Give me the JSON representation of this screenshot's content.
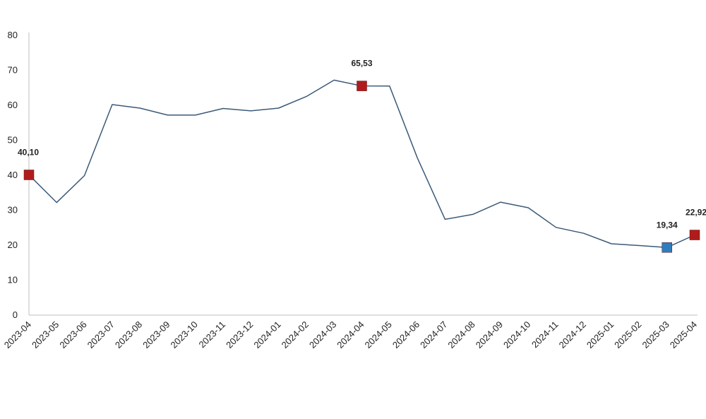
{
  "chart_data": {
    "type": "line",
    "title": "",
    "xlabel": "",
    "ylabel": "",
    "ylim": [
      0,
      80
    ],
    "yticks": [
      0,
      10,
      20,
      30,
      40,
      50,
      60,
      70,
      80
    ],
    "grid": false,
    "legend": "none",
    "categories": [
      "2023-04",
      "2023-05",
      "2023-06",
      "2023-07",
      "2023-08",
      "2023-09",
      "2023-10",
      "2023-11",
      "2023-12",
      "2024-01",
      "2024-02",
      "2024-03",
      "2024-04",
      "2024-05",
      "2024-06",
      "2024-07",
      "2024-08",
      "2024-09",
      "2024-10",
      "2024-11",
      "2024-12",
      "2025-01",
      "2025-02",
      "2025-03",
      "2025-04"
    ],
    "series": [
      {
        "values": [
          40.1,
          32.2,
          39.9,
          60.2,
          59.2,
          57.2,
          57.2,
          59.1,
          58.4,
          59.2,
          62.5,
          67.2,
          65.53,
          65.5,
          45.0,
          27.4,
          28.8,
          32.3,
          30.7,
          25.1,
          23.4,
          20.4,
          19.9,
          19.34,
          22.92
        ],
        "color": "#3b5a78"
      }
    ],
    "markers": [
      {
        "index": 0,
        "label": "40,10",
        "color": "#b01c1c"
      },
      {
        "index": 12,
        "label": "65,53",
        "color": "#b01c1c"
      },
      {
        "index": 23,
        "label": "19,34",
        "color": "#2e7dbf"
      },
      {
        "index": 24,
        "label": "22,92",
        "color": "#b01c1c"
      }
    ]
  }
}
